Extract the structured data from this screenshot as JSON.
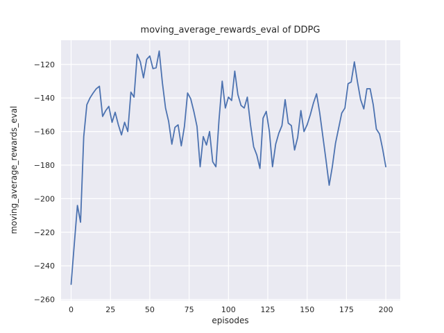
{
  "chart_data": {
    "type": "line",
    "title": "moving_average_rewards_eval of DDPG",
    "xlabel": "episodes",
    "ylabel": "moving_average_rewards_eval",
    "grid": true,
    "legend": "none",
    "xlim": [
      -6.4,
      209.2
    ],
    "ylim": [
      -260.6,
      -105.6
    ],
    "xticks": {
      "values": [
        0,
        25,
        50,
        75,
        100,
        125,
        150,
        175,
        200
      ],
      "labels": [
        "0",
        "25",
        "50",
        "75",
        "100",
        "125",
        "150",
        "175",
        "200"
      ]
    },
    "yticks": {
      "values": [
        -120,
        -140,
        -160,
        -180,
        -200,
        -220,
        -240,
        -260
      ],
      "labels": [
        "−120",
        "−140",
        "−160",
        "−180",
        "−200",
        "−220",
        "−240",
        "−260"
      ]
    },
    "style": {
      "figure_bg": "#ffffff",
      "axes_bg": "#eaeaf2",
      "grid_color": "#ffffff",
      "text_color": "#262626",
      "line_color": "#4c72b0"
    },
    "x": [
      0,
      2,
      4,
      6,
      8,
      10,
      12,
      14,
      16,
      18,
      20,
      22,
      24,
      26,
      28,
      30,
      32,
      34,
      36,
      38,
      40,
      42,
      44,
      46,
      48,
      50,
      52,
      54,
      56,
      58,
      60,
      62,
      64,
      66,
      68,
      70,
      72,
      74,
      76,
      78,
      80,
      82,
      84,
      86,
      88,
      90,
      92,
      94,
      96,
      98,
      100,
      102,
      104,
      106,
      108,
      110,
      112,
      114,
      116,
      118,
      120,
      122,
      124,
      126,
      128,
      130,
      132,
      134,
      136,
      138,
      140,
      142,
      144,
      146,
      148,
      150,
      152,
      154,
      156,
      158,
      160,
      162,
      164,
      166,
      168,
      170,
      172,
      174,
      176,
      178,
      180,
      182,
      184,
      186,
      188,
      190,
      192,
      194,
      196,
      198,
      200
    ],
    "series": [
      {
        "name": "moving_average_rewards_eval",
        "color": "#4c72b0",
        "values": [
          -251,
          -227,
          -204,
          -214,
          -163,
          -144,
          -140,
          -137,
          -134.5,
          -133,
          -151,
          -147.5,
          -145,
          -154.5,
          -148.5,
          -156,
          -162,
          -154.5,
          -160,
          -136.5,
          -139.5,
          -114,
          -118.5,
          -128,
          -117,
          -115,
          -122.5,
          -122,
          -112,
          -131,
          -146,
          -154,
          -167.5,
          -157.5,
          -156,
          -168.5,
          -157,
          -137,
          -140.5,
          -148,
          -157,
          -181,
          -163,
          -168,
          -160,
          -178,
          -181,
          -153,
          -130,
          -146,
          -139.5,
          -141.5,
          -124,
          -138,
          -144.5,
          -146,
          -139.5,
          -156,
          -169,
          -174,
          -182,
          -152,
          -148,
          -160,
          -181,
          -167.5,
          -161,
          -156.5,
          -141,
          -155,
          -156.5,
          -171,
          -163.5,
          -147.5,
          -160,
          -156,
          -150,
          -143,
          -137.5,
          -149,
          -163,
          -177,
          -192,
          -181,
          -167,
          -158,
          -149,
          -146,
          -131.5,
          -130.5,
          -118.5,
          -130.5,
          -141,
          -146.5,
          -134.5,
          -134.5,
          -144,
          -158.5,
          -161.5,
          -170.5,
          -181
        ]
      }
    ]
  }
}
